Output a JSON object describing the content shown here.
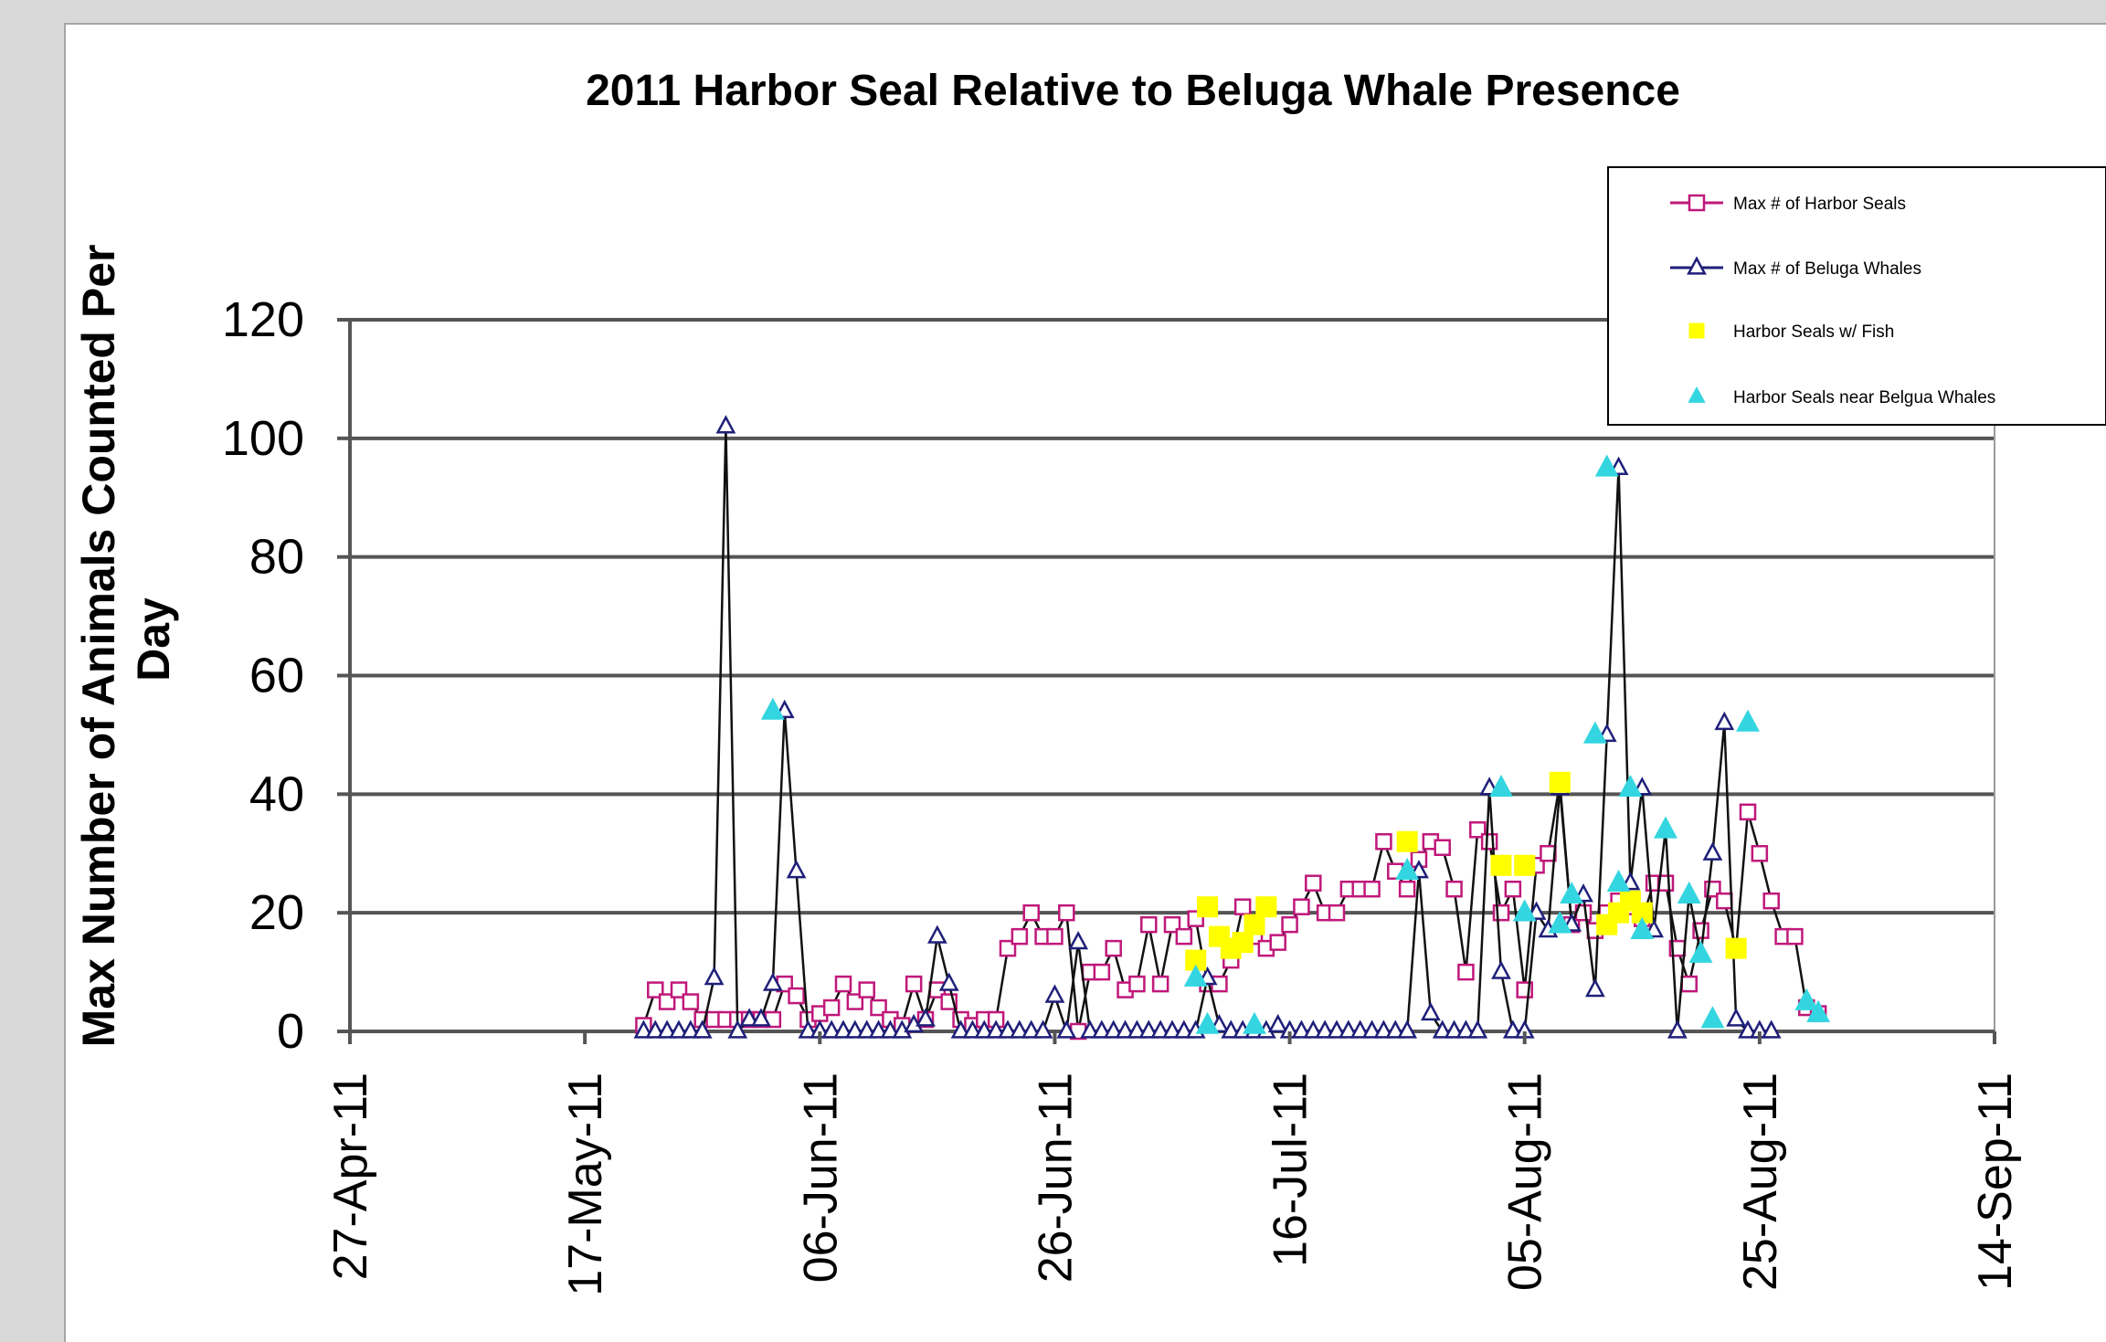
{
  "chart_data": {
    "type": "line",
    "title": "2011 Harbor Seal Relative to Beluga Whale Presence",
    "xlabel": "",
    "ylabel": "Max Number of Animals Counted Per Day",
    "ylim": [
      0,
      120
    ],
    "y_ticks": [
      "0",
      "20",
      "40",
      "60",
      "80",
      "100",
      "120"
    ],
    "xlim": [
      "2011-04-27",
      "2011-09-14"
    ],
    "x_ticks": [
      {
        "date": "2011-04-27",
        "label": "27-Apr-11"
      },
      {
        "date": "2011-05-17",
        "label": "17-May-11"
      },
      {
        "date": "2011-06-06",
        "label": "06-Jun-11"
      },
      {
        "date": "2011-06-26",
        "label": "26-Jun-11"
      },
      {
        "date": "2011-07-16",
        "label": "16-Jul-11"
      },
      {
        "date": "2011-08-05",
        "label": "05-Aug-11"
      },
      {
        "date": "2011-08-25",
        "label": "25-Aug-11"
      },
      {
        "date": "2011-09-14",
        "label": "14-Sep-11"
      }
    ],
    "grid": true,
    "legend_position": "top-right",
    "series": [
      {
        "name": "Max # of Harbor Seals",
        "color": "#c0187a",
        "marker": "square-open",
        "x": [
          "2011-05-22",
          "2011-05-23",
          "2011-05-24",
          "2011-05-25",
          "2011-05-26",
          "2011-05-27",
          "2011-05-28",
          "2011-05-29",
          "2011-05-30",
          "2011-05-31",
          "2011-06-01",
          "2011-06-02",
          "2011-06-03",
          "2011-06-04",
          "2011-06-05",
          "2011-06-06",
          "2011-06-07",
          "2011-06-08",
          "2011-06-09",
          "2011-06-10",
          "2011-06-11",
          "2011-06-12",
          "2011-06-13",
          "2011-06-14",
          "2011-06-15",
          "2011-06-16",
          "2011-06-17",
          "2011-06-18",
          "2011-06-19",
          "2011-06-20",
          "2011-06-21",
          "2011-06-22",
          "2011-06-23",
          "2011-06-24",
          "2011-06-25",
          "2011-06-26",
          "2011-06-27",
          "2011-06-28",
          "2011-06-29",
          "2011-06-30",
          "2011-07-01",
          "2011-07-02",
          "2011-07-03",
          "2011-07-04",
          "2011-07-05",
          "2011-07-06",
          "2011-07-07",
          "2011-07-08",
          "2011-07-09",
          "2011-07-10",
          "2011-07-11",
          "2011-07-12",
          "2011-07-13",
          "2011-07-14",
          "2011-07-15",
          "2011-07-16",
          "2011-07-17",
          "2011-07-18",
          "2011-07-19",
          "2011-07-20",
          "2011-07-21",
          "2011-07-22",
          "2011-07-23",
          "2011-07-24",
          "2011-07-25",
          "2011-07-26",
          "2011-07-27",
          "2011-07-28",
          "2011-07-29",
          "2011-07-30",
          "2011-07-31",
          "2011-08-01",
          "2011-08-02",
          "2011-08-03",
          "2011-08-04",
          "2011-08-05",
          "2011-08-06",
          "2011-08-07",
          "2011-08-08",
          "2011-08-09",
          "2011-08-10",
          "2011-08-11",
          "2011-08-12",
          "2011-08-13",
          "2011-08-14",
          "2011-08-15",
          "2011-08-16",
          "2011-08-17",
          "2011-08-18",
          "2011-08-19",
          "2011-08-20",
          "2011-08-21",
          "2011-08-22",
          "2011-08-23",
          "2011-08-24",
          "2011-08-25",
          "2011-08-26",
          "2011-08-27",
          "2011-08-28",
          "2011-08-29",
          "2011-08-30"
        ],
        "values": [
          1,
          7,
          5,
          7,
          5,
          2,
          2,
          2,
          2,
          2,
          2,
          2,
          8,
          6,
          2,
          3,
          4,
          8,
          5,
          7,
          4,
          2,
          1,
          8,
          2,
          7,
          5,
          2,
          1,
          2,
          2,
          14,
          16,
          20,
          16,
          16,
          20,
          0,
          10,
          10,
          14,
          7,
          8,
          18,
          8,
          18,
          16,
          19,
          8,
          8,
          12,
          21,
          16,
          14,
          15,
          18,
          21,
          25,
          20,
          20,
          24,
          24,
          24,
          32,
          27,
          24,
          29,
          32,
          31,
          24,
          10,
          34,
          32,
          20,
          24,
          7,
          28,
          30,
          42,
          18,
          20,
          17,
          20,
          22,
          21,
          19,
          25,
          25,
          14,
          8,
          17,
          24,
          22,
          14,
          37,
          30,
          22,
          16,
          16,
          4,
          3
        ]
      },
      {
        "name": "Max # of Beluga Whales",
        "color": "#1f1f7a",
        "marker": "triangle-open",
        "x": [
          "2011-05-22",
          "2011-05-23",
          "2011-05-24",
          "2011-05-25",
          "2011-05-26",
          "2011-05-27",
          "2011-05-28",
          "2011-05-29",
          "2011-05-30",
          "2011-05-31",
          "2011-06-01",
          "2011-06-02",
          "2011-06-03",
          "2011-06-04",
          "2011-06-05",
          "2011-06-06",
          "2011-06-07",
          "2011-06-08",
          "2011-06-09",
          "2011-06-10",
          "2011-06-11",
          "2011-06-12",
          "2011-06-13",
          "2011-06-14",
          "2011-06-15",
          "2011-06-16",
          "2011-06-17",
          "2011-06-18",
          "2011-06-19",
          "2011-06-20",
          "2011-06-21",
          "2011-06-22",
          "2011-06-23",
          "2011-06-24",
          "2011-06-25",
          "2011-06-26",
          "2011-06-27",
          "2011-06-28",
          "2011-06-29",
          "2011-06-30",
          "2011-07-01",
          "2011-07-02",
          "2011-07-03",
          "2011-07-04",
          "2011-07-05",
          "2011-07-06",
          "2011-07-07",
          "2011-07-08",
          "2011-07-09",
          "2011-07-10",
          "2011-07-11",
          "2011-07-12",
          "2011-07-13",
          "2011-07-14",
          "2011-07-15",
          "2011-07-16",
          "2011-07-17",
          "2011-07-18",
          "2011-07-19",
          "2011-07-20",
          "2011-07-21",
          "2011-07-22",
          "2011-07-23",
          "2011-07-24",
          "2011-07-25",
          "2011-07-26",
          "2011-07-27",
          "2011-07-28",
          "2011-07-29",
          "2011-07-30",
          "2011-07-31",
          "2011-08-01",
          "2011-08-02",
          "2011-08-03",
          "2011-08-04",
          "2011-08-05",
          "2011-08-06",
          "2011-08-07",
          "2011-08-08",
          "2011-08-09",
          "2011-08-10",
          "2011-08-11",
          "2011-08-12",
          "2011-08-13",
          "2011-08-14",
          "2011-08-15",
          "2011-08-16",
          "2011-08-17",
          "2011-08-18",
          "2011-08-19",
          "2011-08-20",
          "2011-08-21",
          "2011-08-22",
          "2011-08-23",
          "2011-08-24",
          "2011-08-25",
          "2011-08-26"
        ],
        "values": [
          0,
          0,
          0,
          0,
          0,
          0,
          9,
          102,
          0,
          2,
          2,
          8,
          54,
          27,
          0,
          0,
          0,
          0,
          0,
          0,
          0,
          0,
          0,
          1,
          2,
          16,
          8,
          0,
          0,
          0,
          0,
          0,
          0,
          0,
          0,
          6,
          0,
          15,
          0,
          0,
          0,
          0,
          0,
          0,
          0,
          0,
          0,
          0,
          9,
          1,
          0,
          0,
          0,
          0,
          1,
          0,
          0,
          0,
          0,
          0,
          0,
          0,
          0,
          0,
          0,
          0,
          27,
          3,
          0,
          0,
          0,
          0,
          41,
          10,
          0,
          0,
          20,
          17,
          41,
          18,
          23,
          7,
          50,
          95,
          25,
          41,
          17,
          34,
          0,
          23,
          13,
          30,
          52,
          2,
          0,
          0,
          0
        ]
      },
      {
        "name": "Harbor Seals w/ Fish",
        "color": "#ffff00",
        "marker": "square-filled",
        "x": [
          "2011-07-08",
          "2011-07-09",
          "2011-07-10",
          "2011-07-11",
          "2011-07-12",
          "2011-07-13",
          "2011-07-14",
          "2011-07-26",
          "2011-08-03",
          "2011-08-05",
          "2011-08-08",
          "2011-08-12",
          "2011-08-13",
          "2011-08-14",
          "2011-08-15",
          "2011-08-23"
        ],
        "values": [
          12,
          21,
          16,
          14,
          15,
          18,
          21,
          32,
          28,
          28,
          42,
          18,
          20,
          22,
          20,
          14
        ]
      },
      {
        "name": "Harbor Seals near Belgua Whales",
        "color": "#33d6e0",
        "marker": "triangle-filled",
        "x": [
          "2011-06-02",
          "2011-07-08",
          "2011-07-09",
          "2011-07-13",
          "2011-07-26",
          "2011-08-03",
          "2011-08-05",
          "2011-08-08",
          "2011-08-09",
          "2011-08-11",
          "2011-08-12",
          "2011-08-13",
          "2011-08-14",
          "2011-08-15",
          "2011-08-17",
          "2011-08-19",
          "2011-08-20",
          "2011-08-21",
          "2011-08-24",
          "2011-08-29",
          "2011-08-30"
        ],
        "values": [
          54,
          9,
          1,
          1,
          27,
          41,
          20,
          18,
          23,
          50,
          95,
          25,
          41,
          17,
          34,
          23,
          13,
          2,
          52,
          5,
          3
        ]
      }
    ]
  }
}
